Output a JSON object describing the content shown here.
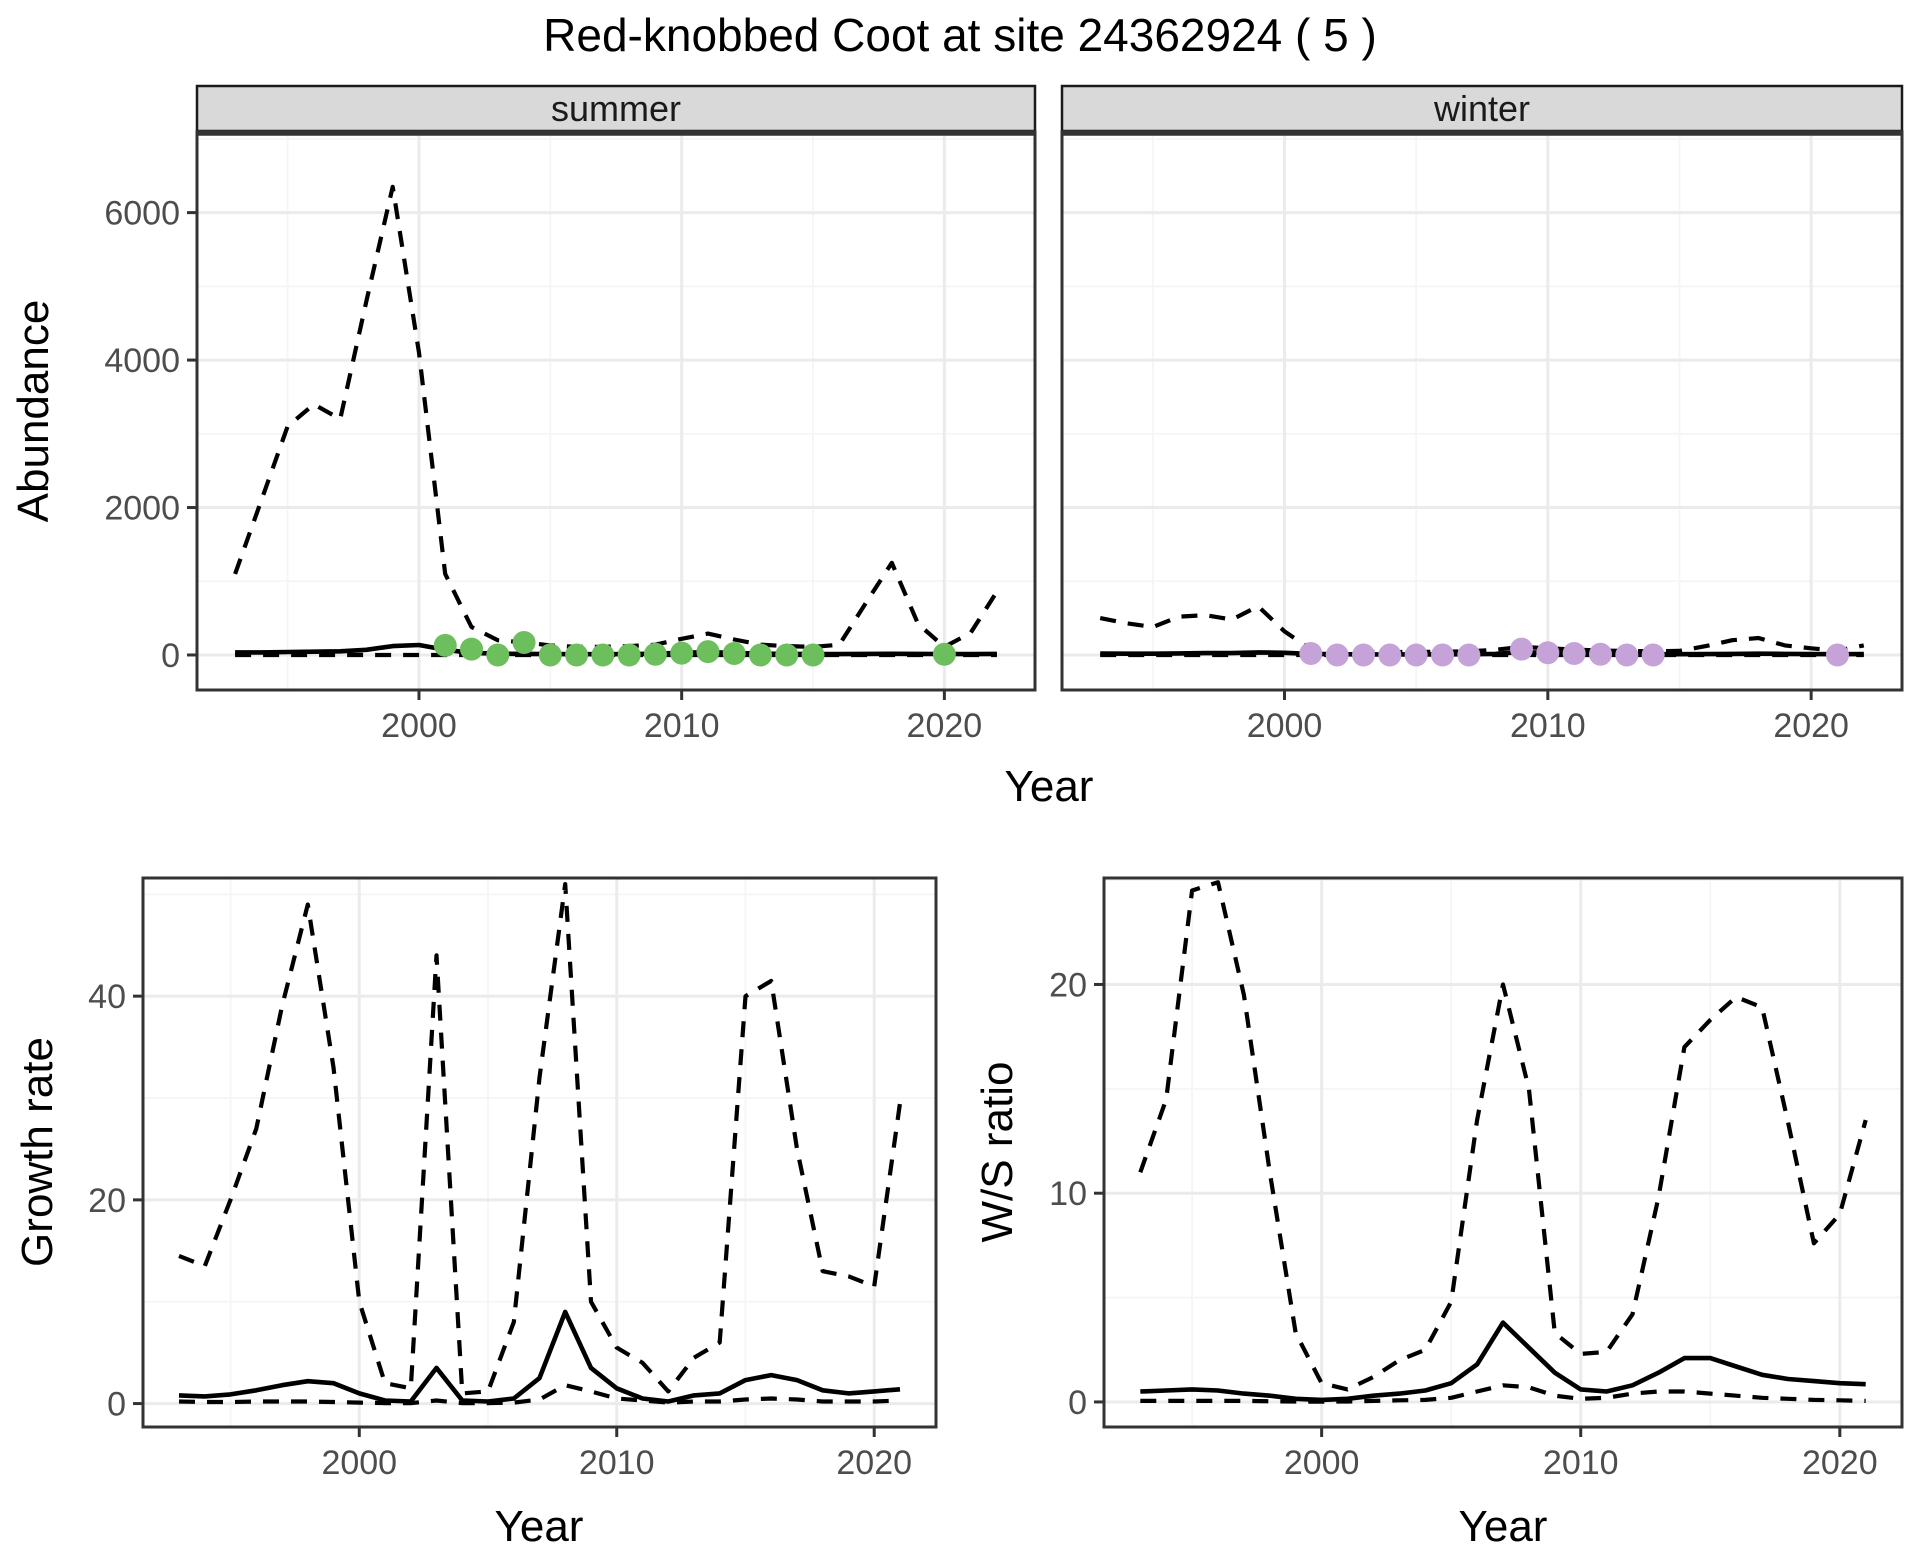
{
  "title": "Red-knobbed Coot at site 24362924 ( 5 )",
  "facets": {
    "summer": "summer",
    "winter": "winter"
  },
  "axes": {
    "abundance": "Abundance",
    "year": "Year",
    "growth_rate": "Growth rate",
    "ws_ratio": "W/S ratio"
  },
  "colors": {
    "line": "#000000",
    "summer_point": "#6DBE5C",
    "winter_point": "#C5A2D8",
    "grid_major": "#EBEBEB",
    "grid_minor": "#F5F5F5",
    "panel_border": "#333333",
    "tick_mark": "#333333",
    "axis_text": "#4D4D4D",
    "strip_bg": "#D9D9D9",
    "strip_border": "#1A1A1A"
  },
  "chart_data": [
    {
      "id": "abundance_summer",
      "type": "line",
      "facet": "summer",
      "xlabel": "Year",
      "ylabel": "Abundance",
      "x": [
        1993,
        1994,
        1995,
        1996,
        1997,
        1998,
        1999,
        2000,
        2001,
        2002,
        2003,
        2004,
        2005,
        2006,
        2007,
        2008,
        2009,
        2010,
        2011,
        2012,
        2013,
        2014,
        2015,
        2016,
        2017,
        2018,
        2019,
        2020,
        2021,
        2022
      ],
      "series": [
        {
          "name": "mean",
          "linetype": "solid",
          "values": [
            35,
            35,
            40,
            45,
            50,
            70,
            120,
            135,
            70,
            30,
            18,
            15,
            12,
            10,
            10,
            12,
            18,
            30,
            38,
            28,
            18,
            14,
            12,
            12,
            14,
            16,
            15,
            13,
            12,
            15
          ]
        },
        {
          "name": "ci_upper",
          "linetype": "dashed",
          "values": [
            1100,
            2100,
            3100,
            3400,
            3200,
            4800,
            6350,
            4100,
            1100,
            380,
            200,
            170,
            130,
            110,
            110,
            120,
            140,
            220,
            290,
            210,
            140,
            120,
            110,
            140,
            700,
            1250,
            420,
            110,
            300,
            860
          ]
        },
        {
          "name": "ci_lower",
          "linetype": "dashed",
          "values": [
            0,
            0,
            0,
            0,
            0,
            0,
            0,
            0,
            0,
            0,
            0,
            0,
            0,
            0,
            0,
            0,
            0,
            0,
            0,
            0,
            0,
            0,
            0,
            0,
            0,
            0,
            0,
            0,
            0,
            0
          ]
        }
      ],
      "points": {
        "name": "observed_counts",
        "color_key": "summer_point",
        "x": [
          2001,
          2002,
          2003,
          2004,
          2005,
          2006,
          2007,
          2008,
          2009,
          2010,
          2011,
          2012,
          2013,
          2014,
          2015,
          2020
        ],
        "y": [
          130,
          80,
          0,
          170,
          0,
          0,
          0,
          0,
          10,
          25,
          45,
          20,
          0,
          0,
          0,
          10
        ]
      },
      "xlim": [
        1991.55,
        2023.45
      ],
      "ylim": [
        -475,
        7080
      ],
      "xticks": [
        2000,
        2010,
        2020
      ],
      "xticks_minor": [
        1995,
        2005,
        2015
      ],
      "yticks": [
        0,
        2000,
        4000,
        6000
      ],
      "yticks_minor": [
        1000,
        3000,
        5000,
        7000
      ],
      "legend": "none",
      "grid": true
    },
    {
      "id": "abundance_winter",
      "type": "line",
      "facet": "winter",
      "xlabel": "Year",
      "ylabel": "Abundance",
      "x": [
        1993,
        1994,
        1995,
        1996,
        1997,
        1998,
        1999,
        2000,
        2001,
        2002,
        2003,
        2004,
        2005,
        2006,
        2007,
        2008,
        2009,
        2010,
        2011,
        2012,
        2013,
        2014,
        2015,
        2016,
        2017,
        2018,
        2019,
        2020,
        2021,
        2022
      ],
      "series": [
        {
          "name": "mean",
          "linetype": "solid",
          "values": [
            20,
            18,
            18,
            22,
            25,
            25,
            35,
            30,
            15,
            10,
            8,
            8,
            8,
            8,
            10,
            15,
            40,
            25,
            18,
            12,
            10,
            10,
            10,
            12,
            15,
            18,
            15,
            12,
            10,
            12
          ]
        },
        {
          "name": "ci_upper",
          "linetype": "dashed",
          "values": [
            500,
            430,
            380,
            520,
            540,
            480,
            660,
            320,
            80,
            50,
            40,
            40,
            40,
            45,
            50,
            70,
            110,
            90,
            75,
            60,
            55,
            50,
            55,
            120,
            200,
            230,
            130,
            90,
            60,
            130
          ]
        },
        {
          "name": "ci_lower",
          "linetype": "dashed",
          "values": [
            0,
            0,
            0,
            0,
            0,
            0,
            0,
            0,
            0,
            0,
            0,
            0,
            0,
            0,
            0,
            0,
            0,
            0,
            0,
            0,
            0,
            0,
            0,
            0,
            0,
            0,
            0,
            0,
            0,
            0
          ]
        }
      ],
      "points": {
        "name": "observed_counts",
        "color_key": "winter_point",
        "x": [
          2001,
          2002,
          2003,
          2004,
          2005,
          2006,
          2007,
          2009,
          2010,
          2011,
          2012,
          2013,
          2014,
          2021
        ],
        "y": [
          20,
          0,
          0,
          0,
          0,
          0,
          0,
          80,
          30,
          20,
          10,
          0,
          0,
          0
        ]
      },
      "xlim": [
        1991.55,
        2023.45
      ],
      "ylim": [
        -475,
        7080
      ],
      "xticks": [
        2000,
        2010,
        2020
      ],
      "xticks_minor": [
        1995,
        2005,
        2015
      ],
      "yticks": [],
      "yticks_minor": [
        1000,
        3000,
        5000,
        7000
      ],
      "yticks_grid": [
        0,
        2000,
        4000,
        6000
      ],
      "legend": "none",
      "grid": true
    },
    {
      "id": "growth_rate",
      "type": "line",
      "xlabel": "Year",
      "ylabel": "Growth rate",
      "x": [
        1993,
        1994,
        1995,
        1996,
        1997,
        1998,
        1999,
        2000,
        2001,
        2002,
        2003,
        2004,
        2005,
        2006,
        2007,
        2008,
        2009,
        2010,
        2011,
        2012,
        2013,
        2014,
        2015,
        2016,
        2017,
        2018,
        2019,
        2020,
        2021
      ],
      "series": [
        {
          "name": "mean",
          "linetype": "solid",
          "values": [
            0.8,
            0.7,
            0.9,
            1.3,
            1.8,
            2.2,
            2,
            1,
            0.3,
            0.2,
            3.5,
            0.3,
            0.2,
            0.5,
            2.5,
            9,
            3.5,
            1.5,
            0.5,
            0.2,
            0.8,
            1,
            2.3,
            2.8,
            2.3,
            1.3,
            1,
            1.2,
            1.4
          ]
        },
        {
          "name": "ci_upper",
          "linetype": "dashed",
          "values": [
            14.5,
            13.5,
            20,
            27,
            39,
            49,
            33,
            10,
            2,
            1.5,
            44,
            1,
            1.2,
            8,
            32,
            51,
            10,
            5.5,
            4,
            1.2,
            4.5,
            6,
            40,
            41.5,
            25,
            13,
            12.5,
            11.5,
            29.5
          ]
        },
        {
          "name": "ci_lower",
          "linetype": "dashed",
          "values": [
            0.2,
            0.15,
            0.15,
            0.2,
            0.2,
            0.2,
            0.15,
            0.1,
            0.05,
            0.05,
            0.3,
            0.05,
            0.05,
            0.1,
            0.4,
            1.8,
            1.2,
            0.5,
            0.3,
            0.1,
            0.2,
            0.2,
            0.4,
            0.5,
            0.4,
            0.2,
            0.2,
            0.2,
            0.3
          ]
        }
      ],
      "points": null,
      "xlim": [
        1991.6,
        2022.4
      ],
      "ylim": [
        -2.3,
        51.6
      ],
      "xticks": [
        2000,
        2010,
        2020
      ],
      "xticks_minor": [
        1995,
        2005,
        2015
      ],
      "yticks": [
        0,
        20,
        40
      ],
      "yticks_minor": [
        10,
        30,
        50
      ],
      "legend": "none",
      "grid": true
    },
    {
      "id": "ws_ratio",
      "type": "line",
      "xlabel": "Year",
      "ylabel": "W/S ratio",
      "x": [
        1993,
        1994,
        1995,
        1996,
        1997,
        1998,
        1999,
        2000,
        2001,
        2002,
        2003,
        2004,
        2005,
        2006,
        2007,
        2008,
        2009,
        2010,
        2011,
        2012,
        2013,
        2014,
        2015,
        2016,
        2017,
        2018,
        2019,
        2020,
        2021
      ],
      "series": [
        {
          "name": "mean",
          "linetype": "solid",
          "values": [
            0.5,
            0.55,
            0.6,
            0.55,
            0.4,
            0.3,
            0.15,
            0.1,
            0.15,
            0.3,
            0.4,
            0.55,
            0.9,
            1.8,
            3.8,
            2.6,
            1.4,
            0.6,
            0.5,
            0.8,
            1.4,
            2.1,
            2.1,
            1.7,
            1.3,
            1.1,
            1,
            0.9,
            0.85
          ]
        },
        {
          "name": "ci_upper",
          "linetype": "dashed",
          "values": [
            11,
            14.5,
            24.5,
            24.9,
            19.5,
            11,
            3.3,
            0.9,
            0.6,
            1.2,
            2,
            2.5,
            4.8,
            13.5,
            20,
            15,
            3.3,
            2.3,
            2.4,
            4.2,
            9.8,
            17,
            18.3,
            19.4,
            18.9,
            13.4,
            7.6,
            9,
            13.5
          ]
        },
        {
          "name": "ci_lower",
          "linetype": "dashed",
          "values": [
            0.05,
            0.05,
            0.05,
            0.05,
            0.05,
            0.03,
            0.02,
            0.01,
            0.02,
            0.05,
            0.08,
            0.1,
            0.2,
            0.5,
            0.8,
            0.7,
            0.3,
            0.15,
            0.2,
            0.4,
            0.5,
            0.5,
            0.4,
            0.3,
            0.2,
            0.15,
            0.1,
            0.08,
            0.05
          ]
        }
      ],
      "points": null,
      "xlim": [
        1991.6,
        2022.4
      ],
      "ylim": [
        -1.2,
        25.1
      ],
      "xticks": [
        2000,
        2010,
        2020
      ],
      "xticks_minor": [
        1995,
        2005,
        2015
      ],
      "yticks": [
        0,
        10,
        20
      ],
      "yticks_minor": [
        5,
        15,
        25
      ],
      "legend": "none",
      "grid": true
    }
  ]
}
